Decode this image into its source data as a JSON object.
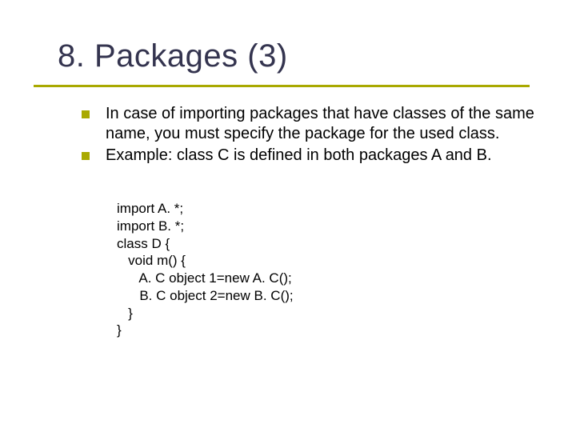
{
  "slide": {
    "title": "8. Packages (3)",
    "title_color": "#34344f",
    "title_fontsize": 40,
    "underline_color": "#a9a900",
    "background_color": "#ffffff",
    "bullets": [
      {
        "text": "In case of importing packages that have classes of the same name, you must specify the package for the used class."
      },
      {
        "text": "Example: class C is defined in both packages A and B."
      }
    ],
    "bullet_marker_color": "#a9a900",
    "bullet_fontsize": 20,
    "code": "import A. *;\nimport B. *;\nclass D {\n   void m() {\n      A. C object 1=new A. C();\n      B. C object 2=new B. C();\n   }\n}",
    "code_fontsize": 17
  }
}
